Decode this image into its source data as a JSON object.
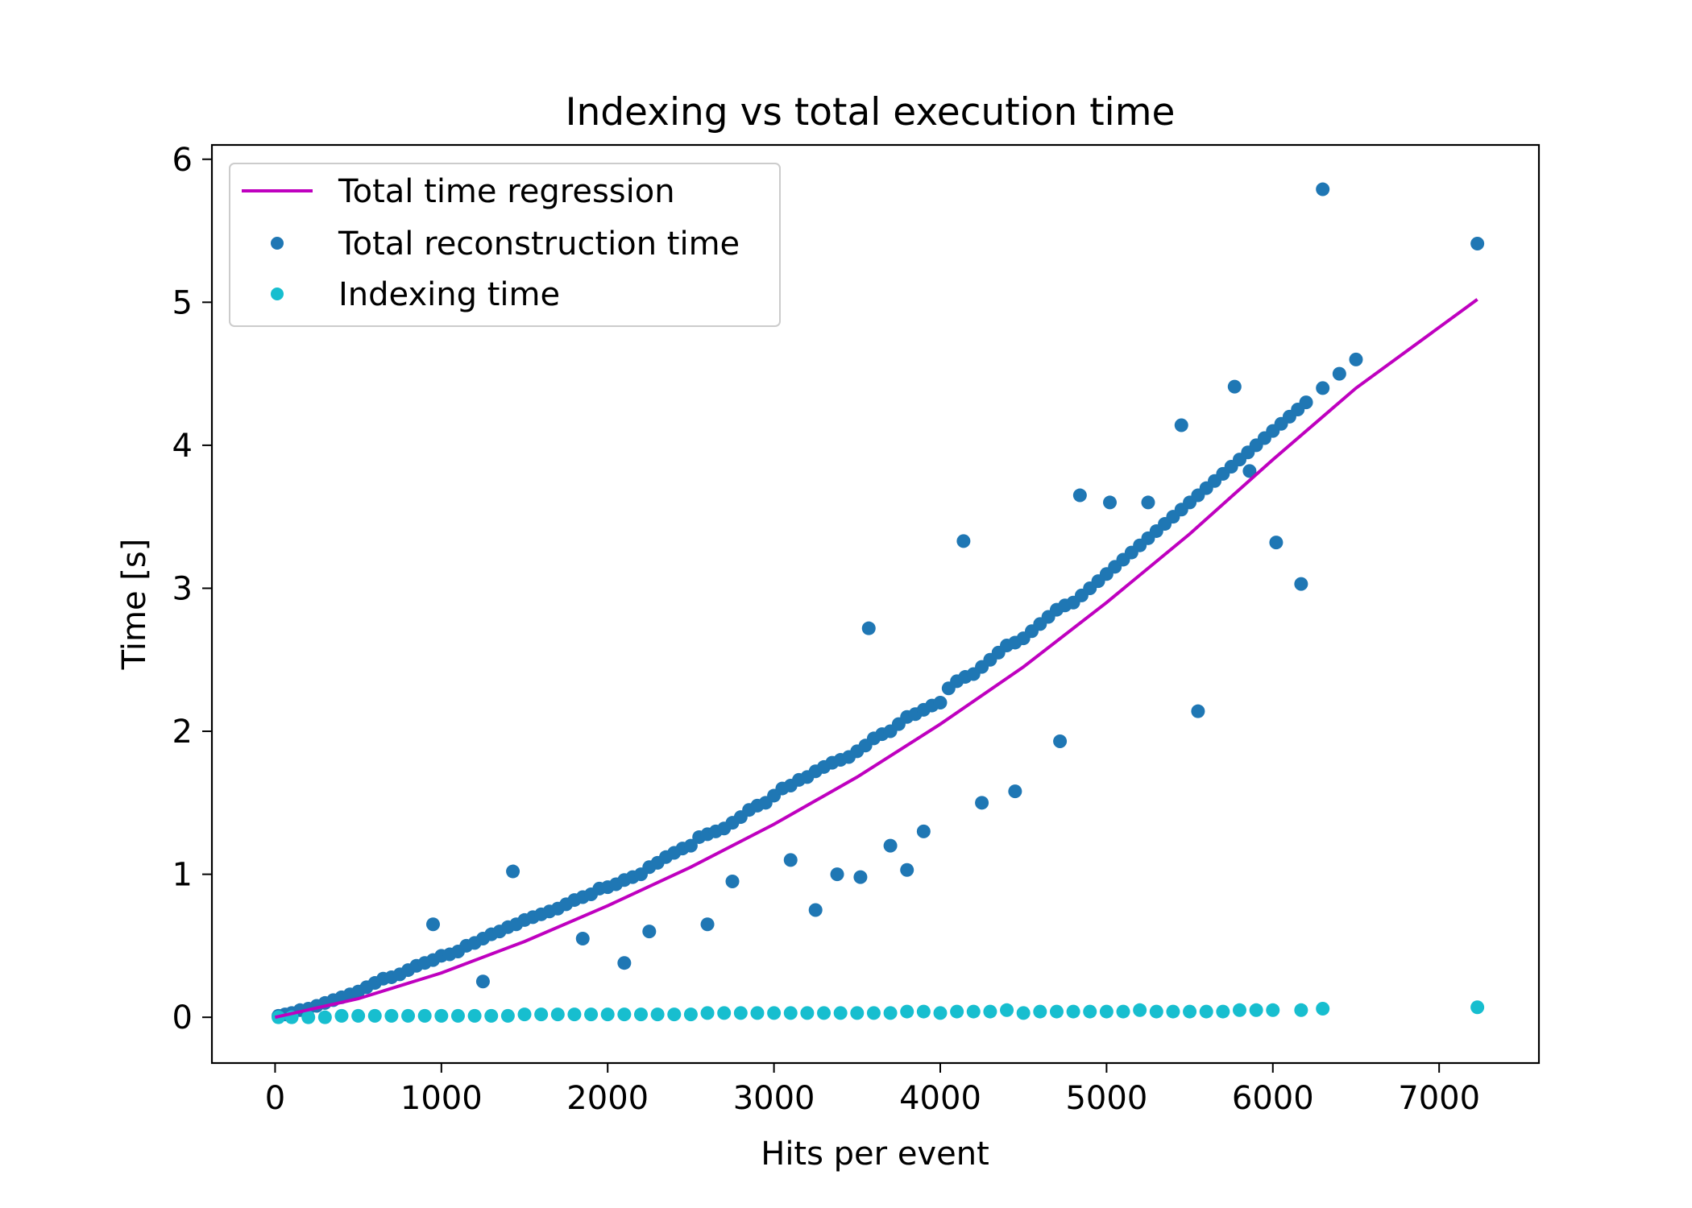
{
  "chart_data": {
    "type": "scatter",
    "title": "Indexing vs total execution time",
    "xlabel": "Hits per event",
    "ylabel": "Time [s]",
    "xlim": [
      -380,
      7600
    ],
    "ylim": [
      -0.32,
      6.1
    ],
    "xticks": [
      0,
      1000,
      2000,
      3000,
      4000,
      5000,
      6000,
      7000
    ],
    "yticks": [
      0,
      1,
      2,
      3,
      4,
      5,
      6
    ],
    "grid": false,
    "legend_position": "upper-left",
    "colors": {
      "regression": "#bf00bf",
      "total": "#1f77b4",
      "indexing": "#17becf"
    },
    "series": [
      {
        "name": "Total time regression",
        "kind": "line",
        "x": [
          0,
          500,
          1000,
          1500,
          2000,
          2500,
          3000,
          3500,
          4000,
          4500,
          5000,
          5500,
          6000,
          6500,
          7230
        ],
        "y": [
          0.0,
          0.13,
          0.31,
          0.53,
          0.78,
          1.05,
          1.35,
          1.68,
          2.05,
          2.45,
          2.9,
          3.38,
          3.9,
          4.4,
          5.02
        ]
      },
      {
        "name": "Total reconstruction time",
        "kind": "scatter",
        "x": [
          20,
          60,
          100,
          150,
          200,
          250,
          300,
          350,
          400,
          450,
          500,
          550,
          600,
          650,
          700,
          750,
          800,
          850,
          900,
          950,
          1000,
          1050,
          1100,
          1150,
          1200,
          1250,
          1300,
          1350,
          1400,
          1450,
          1500,
          1550,
          1600,
          1650,
          1700,
          1750,
          1800,
          1850,
          1900,
          1950,
          2000,
          2050,
          2100,
          2150,
          2200,
          2250,
          2300,
          2350,
          2400,
          2450,
          2500,
          2550,
          2600,
          2650,
          2700,
          2750,
          2800,
          2850,
          2900,
          2950,
          3000,
          3050,
          3100,
          3150,
          3200,
          3250,
          3300,
          3350,
          3400,
          3450,
          3500,
          3550,
          3600,
          3650,
          3700,
          3750,
          3800,
          3850,
          3900,
          3950,
          4000,
          4050,
          4100,
          4150,
          4200,
          4250,
          4300,
          4350,
          4400,
          4450,
          4500,
          4550,
          4600,
          4650,
          4700,
          4750,
          4800,
          4850,
          4900,
          4950,
          5000,
          5050,
          5100,
          5150,
          5200,
          5250,
          5300,
          5350,
          5400,
          5450,
          5500,
          5550,
          5600,
          5650,
          5700,
          5750,
          5800,
          5850,
          5900,
          5950,
          6000,
          6050,
          6100,
          6150,
          6200,
          6300,
          6400,
          6500,
          7230,
          950,
          1430,
          2100,
          3250,
          3520,
          4140,
          4840,
          5020,
          5250,
          5450,
          5770,
          5860,
          6300,
          6170,
          6020,
          3570,
          4450,
          5550,
          4720,
          3800,
          2600,
          2750,
          3100,
          3380,
          1850,
          1250,
          2250,
          3700,
          4250,
          3900
        ],
        "y": [
          0.01,
          0.02,
          0.03,
          0.05,
          0.06,
          0.08,
          0.1,
          0.12,
          0.14,
          0.16,
          0.18,
          0.21,
          0.24,
          0.27,
          0.28,
          0.3,
          0.33,
          0.36,
          0.38,
          0.4,
          0.43,
          0.44,
          0.46,
          0.5,
          0.52,
          0.55,
          0.58,
          0.6,
          0.63,
          0.65,
          0.68,
          0.7,
          0.72,
          0.74,
          0.76,
          0.79,
          0.82,
          0.84,
          0.86,
          0.9,
          0.91,
          0.93,
          0.96,
          0.98,
          1.0,
          1.05,
          1.08,
          1.12,
          1.15,
          1.18,
          1.2,
          1.26,
          1.28,
          1.3,
          1.32,
          1.36,
          1.4,
          1.45,
          1.48,
          1.5,
          1.55,
          1.6,
          1.62,
          1.66,
          1.68,
          1.72,
          1.75,
          1.78,
          1.8,
          1.82,
          1.86,
          1.9,
          1.95,
          1.98,
          2.0,
          2.05,
          2.1,
          2.12,
          2.15,
          2.18,
          2.2,
          2.3,
          2.35,
          2.38,
          2.4,
          2.45,
          2.5,
          2.55,
          2.6,
          2.62,
          2.65,
          2.7,
          2.75,
          2.8,
          2.85,
          2.88,
          2.9,
          2.95,
          3.0,
          3.05,
          3.1,
          3.15,
          3.2,
          3.25,
          3.3,
          3.35,
          3.4,
          3.45,
          3.5,
          3.55,
          3.6,
          3.65,
          3.7,
          3.75,
          3.8,
          3.85,
          3.9,
          3.95,
          4.0,
          4.05,
          4.1,
          4.15,
          4.2,
          4.25,
          4.3,
          4.4,
          4.5,
          4.6,
          5.41,
          0.65,
          1.02,
          0.38,
          0.75,
          0.98,
          3.33,
          3.65,
          3.6,
          3.6,
          4.14,
          4.41,
          3.82,
          5.79,
          3.03,
          3.32,
          2.72,
          1.58,
          2.14,
          1.93,
          1.03,
          0.65,
          0.95,
          1.1,
          1.0,
          0.55,
          0.25,
          0.6,
          1.2,
          1.5,
          1.3
        ]
      },
      {
        "name": "Indexing time",
        "kind": "scatter",
        "x": [
          20,
          100,
          200,
          300,
          400,
          500,
          600,
          700,
          800,
          900,
          1000,
          1100,
          1200,
          1300,
          1400,
          1500,
          1600,
          1700,
          1800,
          1900,
          2000,
          2100,
          2200,
          2300,
          2400,
          2500,
          2600,
          2700,
          2800,
          2900,
          3000,
          3100,
          3200,
          3300,
          3400,
          3500,
          3600,
          3700,
          3800,
          3900,
          4000,
          4100,
          4200,
          4300,
          4400,
          4500,
          4600,
          4700,
          4800,
          4900,
          5000,
          5100,
          5200,
          5300,
          5400,
          5500,
          5600,
          5700,
          5800,
          5900,
          6000,
          6170,
          6300,
          7230
        ],
        "y": [
          0.0,
          0.0,
          0.0,
          0.0,
          0.01,
          0.01,
          0.01,
          0.01,
          0.01,
          0.01,
          0.01,
          0.01,
          0.01,
          0.01,
          0.01,
          0.02,
          0.02,
          0.02,
          0.02,
          0.02,
          0.02,
          0.02,
          0.02,
          0.02,
          0.02,
          0.02,
          0.03,
          0.03,
          0.03,
          0.03,
          0.03,
          0.03,
          0.03,
          0.03,
          0.03,
          0.03,
          0.03,
          0.03,
          0.04,
          0.04,
          0.03,
          0.04,
          0.04,
          0.04,
          0.05,
          0.03,
          0.04,
          0.04,
          0.04,
          0.04,
          0.04,
          0.04,
          0.05,
          0.04,
          0.04,
          0.04,
          0.04,
          0.04,
          0.05,
          0.05,
          0.05,
          0.05,
          0.06,
          0.07
        ]
      }
    ]
  }
}
